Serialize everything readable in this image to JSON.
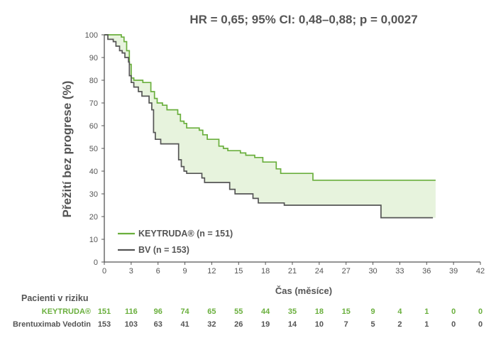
{
  "chart_data": {
    "type": "line",
    "annotation": "HR = 0,65; 95% CI: 0,48–0,88; p = 0,0027",
    "ylabel": "Přežití bez progrese (%)",
    "xlabel": "Čas (měsíce)",
    "xlim": [
      0,
      42
    ],
    "ylim": [
      0,
      100
    ],
    "x_ticks": [
      0,
      3,
      6,
      9,
      12,
      15,
      18,
      21,
      24,
      27,
      30,
      33,
      36,
      39,
      42
    ],
    "y_ticks": [
      0,
      10,
      20,
      30,
      40,
      50,
      60,
      70,
      80,
      90,
      100
    ],
    "legend_position": "bottom-left",
    "series": [
      {
        "name": "KEYTRUDA® (n = 151)",
        "color": "#6aaf3d",
        "points": [
          [
            0,
            100
          ],
          [
            1.9,
            100
          ],
          [
            1.9,
            99
          ],
          [
            2.2,
            99
          ],
          [
            2.2,
            97
          ],
          [
            2.5,
            97
          ],
          [
            2.5,
            93
          ],
          [
            2.8,
            93
          ],
          [
            2.8,
            87
          ],
          [
            3.0,
            87
          ],
          [
            3.0,
            81
          ],
          [
            3.3,
            81
          ],
          [
            3.3,
            80
          ],
          [
            4.3,
            80
          ],
          [
            4.3,
            79
          ],
          [
            5.2,
            79
          ],
          [
            5.2,
            75
          ],
          [
            5.6,
            75
          ],
          [
            5.6,
            72
          ],
          [
            5.9,
            72
          ],
          [
            5.9,
            70
          ],
          [
            6.5,
            70
          ],
          [
            6.5,
            69
          ],
          [
            7.0,
            69
          ],
          [
            7.0,
            67
          ],
          [
            8.2,
            67
          ],
          [
            8.2,
            65
          ],
          [
            8.5,
            65
          ],
          [
            8.5,
            62
          ],
          [
            8.9,
            62
          ],
          [
            8.9,
            61
          ],
          [
            9.2,
            61
          ],
          [
            9.2,
            59
          ],
          [
            10.6,
            59
          ],
          [
            10.6,
            58
          ],
          [
            11.0,
            58
          ],
          [
            11.0,
            56
          ],
          [
            11.5,
            56
          ],
          [
            11.5,
            54
          ],
          [
            12.8,
            54
          ],
          [
            12.8,
            51
          ],
          [
            13.3,
            51
          ],
          [
            13.3,
            50
          ],
          [
            13.8,
            50
          ],
          [
            13.8,
            49
          ],
          [
            15.2,
            49
          ],
          [
            15.2,
            48
          ],
          [
            15.8,
            48
          ],
          [
            15.8,
            47
          ],
          [
            16.8,
            47
          ],
          [
            16.8,
            46
          ],
          [
            17.7,
            46
          ],
          [
            17.7,
            44
          ],
          [
            19.2,
            44
          ],
          [
            19.2,
            41
          ],
          [
            19.7,
            41
          ],
          [
            19.7,
            39
          ],
          [
            23.3,
            39
          ],
          [
            23.3,
            36
          ],
          [
            37,
            36
          ]
        ]
      },
      {
        "name": "BV (n = 153)",
        "color": "#555555",
        "points": [
          [
            0,
            100
          ],
          [
            0.4,
            100
          ],
          [
            0.4,
            98
          ],
          [
            1.0,
            98
          ],
          [
            1.0,
            97
          ],
          [
            1.3,
            97
          ],
          [
            1.3,
            95
          ],
          [
            1.7,
            95
          ],
          [
            1.7,
            93
          ],
          [
            2.0,
            93
          ],
          [
            2.0,
            92
          ],
          [
            2.3,
            92
          ],
          [
            2.3,
            90
          ],
          [
            2.7,
            90
          ],
          [
            2.7,
            88
          ],
          [
            2.8,
            88
          ],
          [
            2.8,
            82
          ],
          [
            3.0,
            82
          ],
          [
            3.0,
            79
          ],
          [
            3.3,
            79
          ],
          [
            3.3,
            77
          ],
          [
            3.8,
            77
          ],
          [
            3.8,
            75
          ],
          [
            4.2,
            75
          ],
          [
            4.2,
            73
          ],
          [
            5.0,
            73
          ],
          [
            5.0,
            70
          ],
          [
            5.3,
            70
          ],
          [
            5.3,
            67
          ],
          [
            5.5,
            67
          ],
          [
            5.5,
            57
          ],
          [
            5.7,
            57
          ],
          [
            5.7,
            54
          ],
          [
            6.3,
            54
          ],
          [
            6.3,
            52
          ],
          [
            8.3,
            52
          ],
          [
            8.3,
            45
          ],
          [
            8.6,
            45
          ],
          [
            8.6,
            42
          ],
          [
            8.9,
            42
          ],
          [
            8.9,
            40
          ],
          [
            9.2,
            40
          ],
          [
            9.2,
            39
          ],
          [
            10.9,
            39
          ],
          [
            10.9,
            37
          ],
          [
            11.2,
            37
          ],
          [
            11.2,
            35
          ],
          [
            14.0,
            35
          ],
          [
            14.0,
            32
          ],
          [
            14.6,
            32
          ],
          [
            14.6,
            30
          ],
          [
            16.6,
            30
          ],
          [
            16.6,
            28
          ],
          [
            17.2,
            28
          ],
          [
            17.2,
            26
          ],
          [
            20.1,
            26
          ],
          [
            20.1,
            25
          ],
          [
            30.9,
            25
          ],
          [
            30.9,
            19.5
          ],
          [
            36.7,
            19.5
          ]
        ]
      }
    ],
    "at_risk": {
      "title": "Pacienti v riziku",
      "rows": [
        {
          "label": "KEYTRUDA®",
          "color": "#6aaf3d",
          "values": [
            "151",
            "116",
            "96",
            "74",
            "65",
            "55",
            "44",
            "35",
            "18",
            "15",
            "9",
            "4",
            "1",
            "0",
            "0"
          ]
        },
        {
          "label": "Brentuximab Vedotin",
          "color": "#555555",
          "values": [
            "153",
            "103",
            "63",
            "41",
            "32",
            "26",
            "19",
            "14",
            "10",
            "7",
            "5",
            "2",
            "1",
            "0",
            "0"
          ]
        }
      ]
    }
  }
}
